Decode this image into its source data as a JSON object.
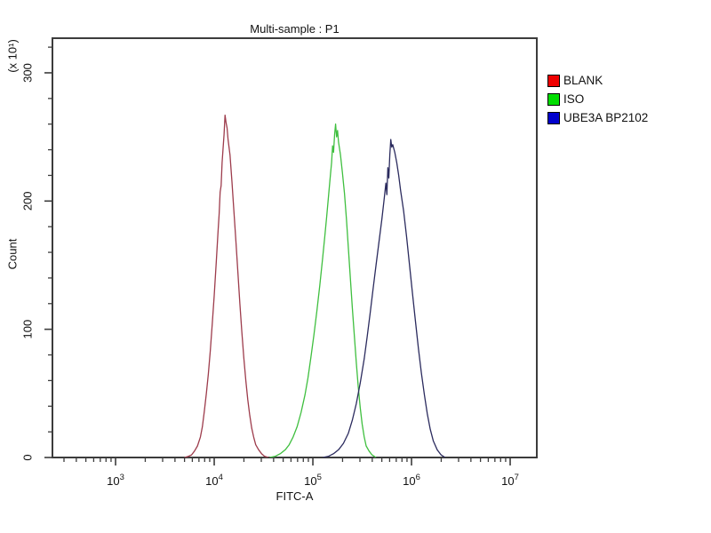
{
  "title": "Multi-sample : P1",
  "frame_color": "#3c3c3c",
  "text_color": "#111111",
  "chart_data": {
    "type": "line",
    "subtype": "flow-cytometry-histogram-overlay",
    "title": "Multi-sample : P1",
    "xlabel": "FITC-A",
    "ylabel": "Count",
    "y_unit": "(x 10¹)",
    "x_scale": "log10",
    "x_range_log10": [
      2.36,
      7.27
    ],
    "x_major_tick_exponents": [
      3,
      4,
      5,
      6,
      7
    ],
    "x_tick_base": "10",
    "ylim": [
      0,
      327
    ],
    "y_major_ticks": [
      0,
      100,
      200,
      300
    ],
    "y_minor_step": 20,
    "grid": false,
    "legend_position": "right",
    "series": [
      {
        "name": "BLANK",
        "legend_color": "#ee0000",
        "line_color": "#9d3c4c",
        "peak": {
          "fitc_a": 13000,
          "count": 267
        },
        "points": [
          [
            3.7,
            0
          ],
          [
            3.74,
            1
          ],
          [
            3.77,
            2
          ],
          [
            3.8,
            5
          ],
          [
            3.83,
            9
          ],
          [
            3.86,
            16
          ],
          [
            3.88,
            24
          ],
          [
            3.9,
            36
          ],
          [
            3.92,
            50
          ],
          [
            3.94,
            65
          ],
          [
            3.96,
            83
          ],
          [
            3.98,
            104
          ],
          [
            4.0,
            126
          ],
          [
            4.02,
            152
          ],
          [
            4.04,
            178
          ],
          [
            4.05,
            190
          ],
          [
            4.06,
            207
          ],
          [
            4.07,
            212
          ],
          [
            4.08,
            230
          ],
          [
            4.09,
            241
          ],
          [
            4.1,
            252
          ],
          [
            4.11,
            267
          ],
          [
            4.12,
            261
          ],
          [
            4.13,
            257
          ],
          [
            4.14,
            248
          ],
          [
            4.16,
            236
          ],
          [
            4.18,
            215
          ],
          [
            4.2,
            192
          ],
          [
            4.22,
            168
          ],
          [
            4.24,
            144
          ],
          [
            4.26,
            120
          ],
          [
            4.28,
            98
          ],
          [
            4.3,
            78
          ],
          [
            4.32,
            60
          ],
          [
            4.34,
            45
          ],
          [
            4.36,
            33
          ],
          [
            4.38,
            23
          ],
          [
            4.4,
            16
          ],
          [
            4.42,
            10
          ],
          [
            4.45,
            6
          ],
          [
            4.48,
            3
          ],
          [
            4.51,
            1
          ],
          [
            4.55,
            0
          ]
        ]
      },
      {
        "name": "ISO",
        "legend_color": "#00dd00",
        "line_color": "#3fbf3f",
        "peak": {
          "fitc_a": 166000,
          "count": 260
        },
        "points": [
          [
            4.56,
            0
          ],
          [
            4.62,
            1
          ],
          [
            4.67,
            3
          ],
          [
            4.72,
            6
          ],
          [
            4.76,
            10
          ],
          [
            4.8,
            16
          ],
          [
            4.84,
            24
          ],
          [
            4.88,
            35
          ],
          [
            4.92,
            49
          ],
          [
            4.95,
            62
          ],
          [
            4.98,
            78
          ],
          [
            5.01,
            95
          ],
          [
            5.04,
            114
          ],
          [
            5.07,
            134
          ],
          [
            5.1,
            156
          ],
          [
            5.12,
            172
          ],
          [
            5.14,
            188
          ],
          [
            5.16,
            205
          ],
          [
            5.18,
            222
          ],
          [
            5.19,
            230
          ],
          [
            5.2,
            243
          ],
          [
            5.21,
            238
          ],
          [
            5.22,
            252
          ],
          [
            5.23,
            260
          ],
          [
            5.24,
            250
          ],
          [
            5.25,
            255
          ],
          [
            5.26,
            246
          ],
          [
            5.28,
            236
          ],
          [
            5.3,
            222
          ],
          [
            5.32,
            206
          ],
          [
            5.34,
            186
          ],
          [
            5.36,
            163
          ],
          [
            5.38,
            140
          ],
          [
            5.4,
            117
          ],
          [
            5.42,
            95
          ],
          [
            5.44,
            74
          ],
          [
            5.46,
            55
          ],
          [
            5.48,
            39
          ],
          [
            5.5,
            26
          ],
          [
            5.52,
            16
          ],
          [
            5.54,
            9
          ],
          [
            5.57,
            5
          ],
          [
            5.6,
            2
          ],
          [
            5.64,
            0
          ]
        ]
      },
      {
        "name": "UBE3A BP2102",
        "legend_color": "#0000cc",
        "line_color": "#2b2b5e",
        "peak": {
          "fitc_a": 616000,
          "count": 248
        },
        "points": [
          [
            5.1,
            0
          ],
          [
            5.16,
            1
          ],
          [
            5.21,
            3
          ],
          [
            5.26,
            6
          ],
          [
            5.31,
            11
          ],
          [
            5.36,
            19
          ],
          [
            5.4,
            29
          ],
          [
            5.44,
            42
          ],
          [
            5.48,
            58
          ],
          [
            5.52,
            77
          ],
          [
            5.55,
            94
          ],
          [
            5.58,
            112
          ],
          [
            5.61,
            131
          ],
          [
            5.64,
            150
          ],
          [
            5.67,
            168
          ],
          [
            5.7,
            186
          ],
          [
            5.72,
            200
          ],
          [
            5.74,
            214
          ],
          [
            5.75,
            205
          ],
          [
            5.76,
            226
          ],
          [
            5.77,
            218
          ],
          [
            5.78,
            236
          ],
          [
            5.79,
            248
          ],
          [
            5.8,
            242
          ],
          [
            5.81,
            244
          ],
          [
            5.83,
            238
          ],
          [
            5.85,
            230
          ],
          [
            5.87,
            220
          ],
          [
            5.89,
            208
          ],
          [
            5.92,
            192
          ],
          [
            5.95,
            172
          ],
          [
            5.98,
            150
          ],
          [
            6.01,
            128
          ],
          [
            6.04,
            106
          ],
          [
            6.07,
            85
          ],
          [
            6.1,
            66
          ],
          [
            6.13,
            49
          ],
          [
            6.16,
            34
          ],
          [
            6.19,
            22
          ],
          [
            6.22,
            13
          ],
          [
            6.26,
            6
          ],
          [
            6.3,
            2
          ],
          [
            6.34,
            0
          ]
        ]
      }
    ]
  }
}
